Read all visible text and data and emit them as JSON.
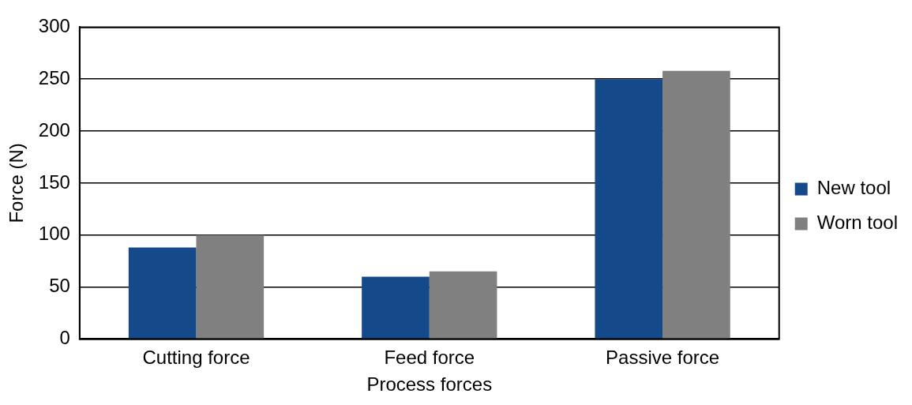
{
  "chart_data": {
    "type": "bar",
    "xlabel": "Process forces",
    "ylabel": "Force (N)",
    "categories": [
      "Cutting force",
      "Feed force",
      "Passive force"
    ],
    "series": [
      {
        "name": "New tool",
        "color": "#154a8a",
        "values": [
          88,
          60,
          250
        ]
      },
      {
        "name": "Worn tool",
        "color": "#808080",
        "values": [
          100,
          65,
          258
        ]
      }
    ],
    "ylim": [
      0,
      300
    ],
    "yticks": [
      0,
      50,
      100,
      150,
      200,
      250,
      300
    ],
    "grid": "y",
    "legend": "right"
  }
}
